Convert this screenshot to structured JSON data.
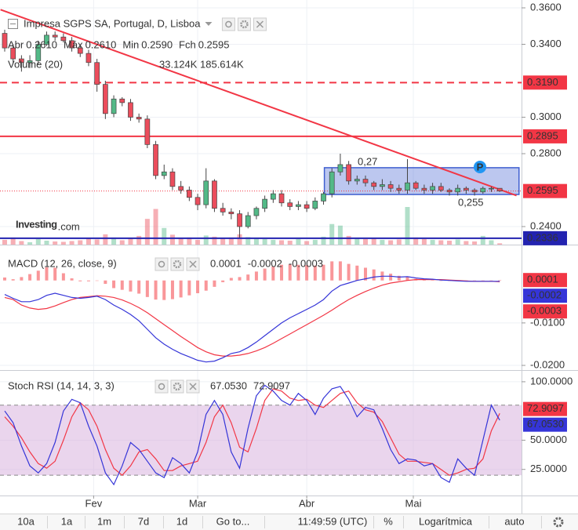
{
  "chart_data": [
    {
      "type": "candlestick",
      "title": "Impresa SGPS SA, Portugal, D, Lisboa",
      "ohlc_legend": [
        {
          "label": "Abr",
          "value": "0.2610"
        },
        {
          "label": "Máx",
          "value": "0.2610"
        },
        {
          "label": "Min",
          "value": "0.2590"
        },
        {
          "label": "Fch",
          "value": "0.2595"
        }
      ],
      "volume_legend": {
        "label": "Volume (20)",
        "values": [
          "33.124K",
          "185.614K"
        ]
      },
      "open": [
        0.346,
        0.338,
        0.332,
        0.33,
        0.331,
        0.34,
        0.345,
        0.344,
        0.342,
        0.338,
        0.335,
        0.33,
        0.318,
        0.302,
        0.31,
        0.308,
        0.3,
        0.299,
        0.285,
        0.268,
        0.27,
        0.262,
        0.26,
        0.256,
        0.252,
        0.265,
        0.25,
        0.248,
        0.247,
        0.24,
        0.246,
        0.25,
        0.255,
        0.258,
        0.253,
        0.251,
        0.252,
        0.25,
        0.254,
        0.258,
        0.27,
        0.274,
        0.265,
        0.266,
        0.264,
        0.262,
        0.263,
        0.261,
        0.26,
        0.264,
        0.261,
        0.26,
        0.262,
        0.26,
        0.259,
        0.261,
        0.26,
        0.259,
        0.261,
        0.261
      ],
      "high": [
        0.348,
        0.34,
        0.334,
        0.334,
        0.342,
        0.347,
        0.347,
        0.346,
        0.344,
        0.34,
        0.337,
        0.332,
        0.32,
        0.312,
        0.311,
        0.31,
        0.302,
        0.301,
        0.287,
        0.274,
        0.272,
        0.265,
        0.262,
        0.258,
        0.272,
        0.266,
        0.253,
        0.25,
        0.249,
        0.248,
        0.251,
        0.257,
        0.26,
        0.26,
        0.255,
        0.254,
        0.254,
        0.256,
        0.259,
        0.272,
        0.28,
        0.276,
        0.268,
        0.268,
        0.265,
        0.266,
        0.265,
        0.263,
        0.277,
        0.265,
        0.263,
        0.264,
        0.264,
        0.261,
        0.263,
        0.262,
        0.261,
        0.262,
        0.262,
        0.261
      ],
      "low": [
        0.336,
        0.33,
        0.325,
        0.327,
        0.329,
        0.339,
        0.342,
        0.341,
        0.336,
        0.333,
        0.328,
        0.314,
        0.299,
        0.3,
        0.306,
        0.298,
        0.297,
        0.283,
        0.266,
        0.266,
        0.26,
        0.258,
        0.254,
        0.249,
        0.25,
        0.248,
        0.246,
        0.244,
        0.234,
        0.239,
        0.244,
        0.248,
        0.253,
        0.251,
        0.249,
        0.249,
        0.248,
        0.249,
        0.252,
        0.256,
        0.268,
        0.263,
        0.263,
        0.262,
        0.26,
        0.26,
        0.259,
        0.258,
        0.258,
        0.26,
        0.258,
        0.258,
        0.259,
        0.257,
        0.257,
        0.258,
        0.257,
        0.258,
        0.259,
        0.259
      ],
      "close": [
        0.338,
        0.332,
        0.33,
        0.331,
        0.34,
        0.345,
        0.344,
        0.342,
        0.338,
        0.335,
        0.33,
        0.318,
        0.302,
        0.31,
        0.308,
        0.3,
        0.299,
        0.285,
        0.268,
        0.27,
        0.262,
        0.26,
        0.256,
        0.252,
        0.265,
        0.25,
        0.248,
        0.247,
        0.24,
        0.246,
        0.25,
        0.255,
        0.258,
        0.253,
        0.251,
        0.252,
        0.25,
        0.254,
        0.258,
        0.27,
        0.274,
        0.265,
        0.266,
        0.264,
        0.262,
        0.263,
        0.261,
        0.26,
        0.264,
        0.261,
        0.26,
        0.262,
        0.26,
        0.259,
        0.261,
        0.26,
        0.259,
        0.261,
        0.261,
        0.2595
      ],
      "volume": [
        120000,
        180000,
        90000,
        60000,
        140000,
        100000,
        80000,
        70000,
        90000,
        110000,
        150000,
        130000,
        260000,
        180000,
        110000,
        160000,
        220000,
        650000,
        900000,
        420000,
        250000,
        150000,
        180000,
        120000,
        230000,
        200000,
        170000,
        180000,
        260000,
        190000,
        150000,
        140000,
        120000,
        110000,
        100000,
        140000,
        90000,
        120000,
        200000,
        520000,
        480000,
        220000,
        160000,
        140000,
        150000,
        120000,
        110000,
        130000,
        950000,
        180000,
        140000,
        120000,
        110000,
        100000,
        130000,
        90000,
        80000,
        220000,
        110000,
        33124
      ],
      "up_color": "#53b987",
      "down_color": "#eb4d5c",
      "xlim": [
        -0.56,
        61.6
      ],
      "xticks": [
        {
          "value": 10.6,
          "label": "Fev"
        },
        {
          "value": 23,
          "label": "Mar"
        },
        {
          "value": 36,
          "label": "Abr"
        },
        {
          "value": 48.7,
          "label": "Mai"
        }
      ],
      "ylim": [
        0.2301,
        0.3643
      ],
      "yticks": [
        {
          "value": 0.36,
          "label": "0.3600"
        },
        {
          "value": 0.34,
          "label": "0.3400"
        },
        {
          "value": 0.3,
          "label": "0.3000"
        },
        {
          "value": 0.28,
          "label": "0.2800"
        },
        {
          "value": 0.24,
          "label": "0.2400"
        }
      ],
      "grid": true,
      "levels": [
        {
          "value": 0.319,
          "label": "0.3190",
          "color": "#f23645",
          "style": "dashed"
        },
        {
          "value": 0.2895,
          "label": "0.2895",
          "color": "#f23645",
          "style": "solid"
        },
        {
          "value": 0.2595,
          "label": "0.2595",
          "color": "#f23645",
          "style": "dotted"
        },
        {
          "value": 0.2336,
          "label": "0.2336",
          "color": "#2323b0",
          "style": "solid"
        }
      ],
      "trendline": {
        "x": [
          -0.5,
          61
        ],
        "y": [
          0.359,
          0.257
        ],
        "color": "#f23645"
      },
      "box": {
        "x": [
          38.1,
          61.3
        ],
        "y": [
          0.2576,
          0.2723
        ],
        "color": "#3f5fd0"
      },
      "annotations": [
        {
          "text": "0,27",
          "color": "#f23645"
        },
        {
          "text": "0,255",
          "color": "#2323b0"
        },
        {
          "text": "P",
          "color": "#2196f3"
        }
      ]
    },
    {
      "type": "macd",
      "title": "MACD (12, 26, close, 9)",
      "histogram": {
        "color": "#f77c80",
        "value_label": "0.0001",
        "values": [
          0.0007,
          0.0003,
          0.0008,
          0.0015,
          0.0023,
          0.0031,
          0.003,
          0.0017,
          0.0005,
          -0.0002,
          -0.0002,
          -0.0001,
          -0.0008,
          -0.0018,
          -0.0022,
          -0.0026,
          -0.0031,
          -0.0039,
          -0.0045,
          -0.0046,
          -0.0044,
          -0.004,
          -0.0035,
          -0.003,
          -0.0024,
          -0.0015,
          -0.0004,
          0.0006,
          0.0008,
          0.0014,
          0.0021,
          0.0028,
          0.0033,
          0.0037,
          0.0038,
          0.0037,
          0.0036,
          0.0035,
          0.0037,
          0.0045,
          0.0045,
          0.0039,
          0.0035,
          0.003,
          0.0026,
          0.0021,
          0.0016,
          0.0011,
          0.0009,
          0.0004,
          0.0002,
          0.0001,
          -0.0001,
          -0.0001,
          -0.0001,
          -0.0001,
          0.0,
          0.0,
          0.0,
          0.0001
        ]
      },
      "macd_line": {
        "color": "#3535d8",
        "value_label": "-0.0002",
        "values": [
          -0.0033,
          -0.0042,
          -0.005,
          -0.005,
          -0.0045,
          -0.0035,
          -0.003,
          -0.0035,
          -0.004,
          -0.0042,
          -0.004,
          -0.0037,
          -0.0045,
          -0.0058,
          -0.0068,
          -0.008,
          -0.0095,
          -0.0115,
          -0.0135,
          -0.015,
          -0.0162,
          -0.0172,
          -0.018,
          -0.0188,
          -0.0192,
          -0.019,
          -0.0182,
          -0.0172,
          -0.0168,
          -0.0158,
          -0.0145,
          -0.013,
          -0.0115,
          -0.01,
          -0.0088,
          -0.0078,
          -0.0068,
          -0.0058,
          -0.0045,
          -0.0025,
          -0.0012,
          -0.0006,
          0.0,
          0.0004,
          0.0008,
          0.001,
          0.001,
          0.0008,
          0.0009,
          0.0006,
          0.0004,
          0.0003,
          0.0001,
          0.0,
          -0.0001,
          -0.0002,
          -0.0002,
          -0.0002,
          -0.0002,
          -0.0002
        ]
      },
      "signal_line": {
        "color": "#f23645",
        "value_label": "-0.0003",
        "values": [
          -0.004,
          -0.0045,
          -0.0058,
          -0.0065,
          -0.0068,
          -0.0066,
          -0.006,
          -0.0052,
          -0.0045,
          -0.004,
          -0.0038,
          -0.0036,
          -0.0037,
          -0.004,
          -0.0046,
          -0.0054,
          -0.0064,
          -0.0076,
          -0.009,
          -0.0104,
          -0.0118,
          -0.0132,
          -0.0145,
          -0.0158,
          -0.0168,
          -0.0175,
          -0.0178,
          -0.0178,
          -0.0176,
          -0.0172,
          -0.0166,
          -0.0158,
          -0.0148,
          -0.0137,
          -0.0126,
          -0.0115,
          -0.0104,
          -0.0093,
          -0.0082,
          -0.007,
          -0.0057,
          -0.0045,
          -0.0035,
          -0.0026,
          -0.0018,
          -0.0011,
          -0.0006,
          -0.0003,
          0.0,
          0.0002,
          0.0002,
          0.0002,
          0.0002,
          0.0001,
          0.0,
          -0.0001,
          -0.0002,
          -0.0002,
          -0.0002,
          -0.0003
        ]
      },
      "ylim": [
        -0.0211,
        0.00826
      ],
      "yticks": [
        {
          "value": -0.01,
          "label": "-0.0100"
        },
        {
          "value": -0.02,
          "label": "-0.0200"
        }
      ]
    },
    {
      "type": "stoch_rsi",
      "title": "Stoch RSI (14, 14, 3, 3)",
      "k_line": {
        "color": "#3535d8",
        "value_label": "67.0530",
        "values": [
          75,
          65,
          45,
          28,
          22,
          30,
          48,
          75,
          85,
          82,
          62,
          45,
          22,
          12,
          28,
          48,
          42,
          32,
          22,
          18,
          35,
          30,
          22,
          40,
          72,
          84,
          72,
          40,
          26,
          60,
          88,
          97,
          92,
          84,
          80,
          90,
          84,
          72,
          86,
          94,
          96,
          85,
          70,
          78,
          76,
          60,
          42,
          30,
          34,
          33,
          28,
          30,
          18,
          14,
          34,
          26,
          20,
          50,
          80,
          67.053
        ]
      },
      "d_line": {
        "color": "#f23645",
        "value_label": "72.9097",
        "values": [
          70,
          62,
          52,
          40,
          30,
          26,
          32,
          50,
          70,
          82,
          76,
          62,
          42,
          26,
          20,
          28,
          40,
          42,
          34,
          24,
          24,
          28,
          30,
          32,
          48,
          70,
          80,
          65,
          44,
          40,
          60,
          84,
          94,
          92,
          86,
          84,
          85,
          80,
          78,
          84,
          90,
          92,
          82,
          76,
          74,
          66,
          52,
          38,
          32,
          32,
          31,
          30,
          25,
          20,
          22,
          25,
          26,
          34,
          58,
          72.9097
        ]
      },
      "bands": [
        20,
        80
      ],
      "band_color": "#d9b3df",
      "ylim": [
        2.67,
        109.33
      ],
      "yticks": [
        {
          "value": 100,
          "label": "100.0000"
        },
        {
          "value": 50,
          "label": "50.0000"
        },
        {
          "value": 25,
          "label": "25.0000"
        }
      ]
    }
  ],
  "watermark": {
    "name": "Investing",
    "suffix": ".com"
  },
  "toolbar": [
    "10a",
    "1a",
    "1m",
    "7d",
    "1d",
    "Go to...",
    "11:49:59 (UTC)",
    "%",
    "Logarítmica",
    "auto"
  ]
}
